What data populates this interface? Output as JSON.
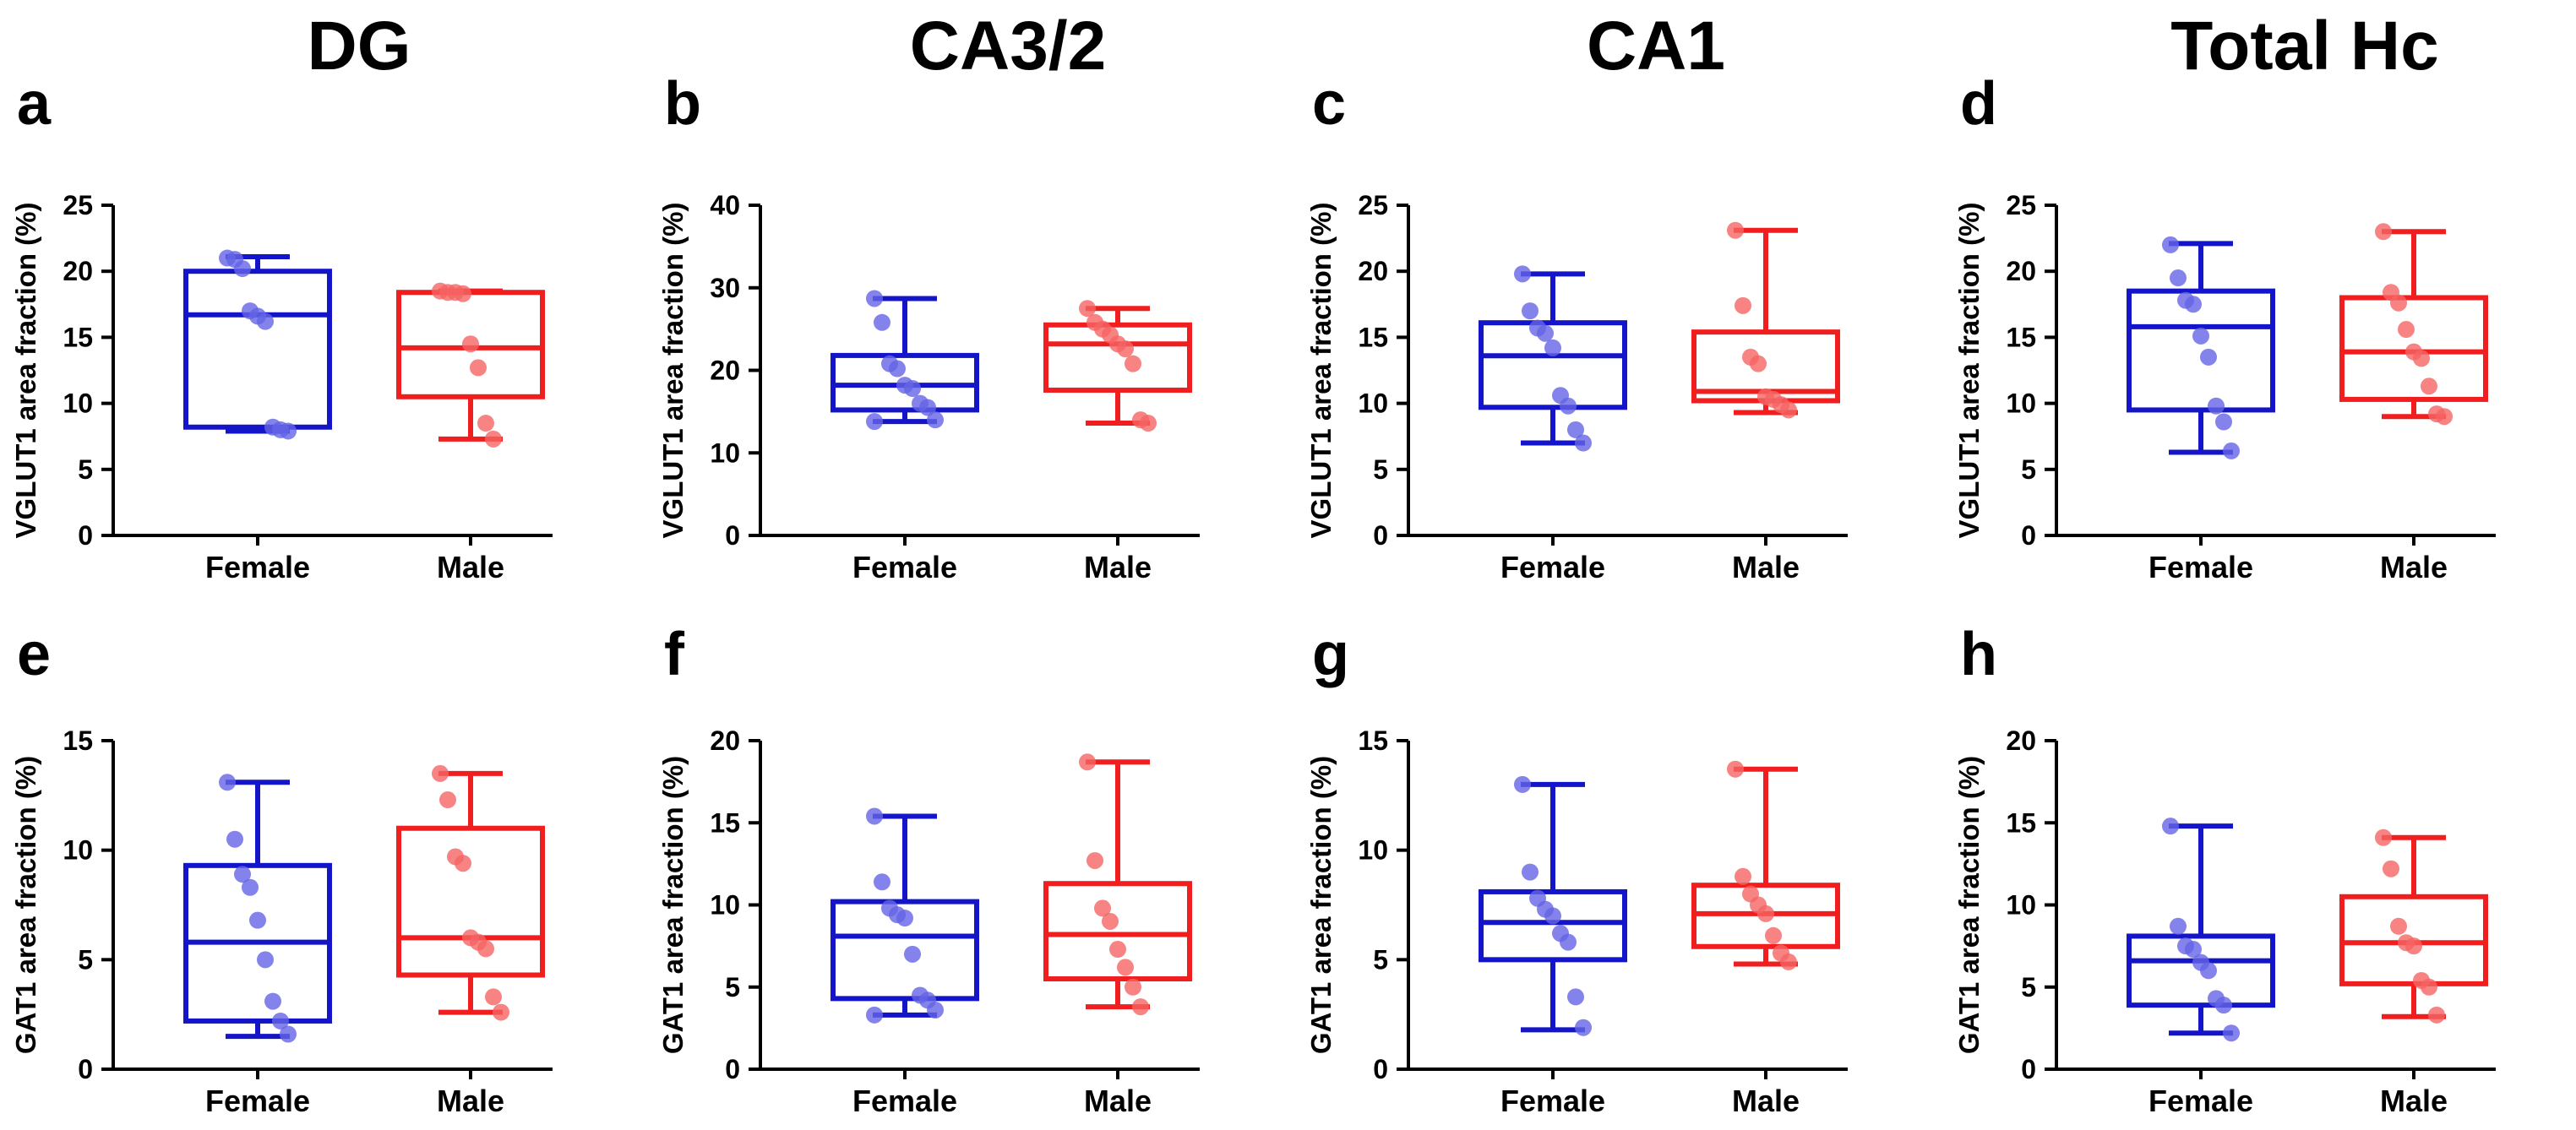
{
  "figure": {
    "column_titles": [
      "DG",
      "CA3/2",
      "CA1",
      "Total Hc"
    ],
    "colors": {
      "Female": "#1414c8",
      "Male": "#f01e1e",
      "Female_point": "#6464e6",
      "Male_point": "#f56464",
      "axis": "#000000"
    }
  },
  "chart_data": [
    {
      "panel": "a",
      "region": "DG",
      "type": "box",
      "ylabel": "VGLUT1 area fraction (%)",
      "ylim": [
        0,
        25
      ],
      "yticks": [
        0,
        5,
        10,
        15,
        20,
        25
      ],
      "categories": [
        "Female",
        "Male"
      ],
      "series": [
        {
          "name": "Female",
          "min": 7.9,
          "q1": 8.2,
          "median": 16.7,
          "q3": 20.0,
          "max": 21.1,
          "points": [
            21.0,
            20.9,
            20.2,
            17.0,
            16.6,
            16.2,
            8.2,
            8.0,
            7.9
          ]
        },
        {
          "name": "Male",
          "min": 7.3,
          "q1": 10.5,
          "median": 14.2,
          "q3": 18.4,
          "max": 18.5,
          "points": [
            18.5,
            18.4,
            18.4,
            18.3,
            14.5,
            12.7,
            8.5,
            7.3
          ]
        }
      ]
    },
    {
      "panel": "b",
      "region": "CA3/2",
      "type": "box",
      "ylabel": "VGLUT1 area fraction (%)",
      "ylim": [
        0,
        40
      ],
      "yticks": [
        0,
        10,
        20,
        30,
        40
      ],
      "categories": [
        "Female",
        "Male"
      ],
      "series": [
        {
          "name": "Female",
          "min": 13.8,
          "q1": 15.2,
          "median": 18.2,
          "q3": 21.8,
          "max": 28.7,
          "points": [
            28.7,
            25.8,
            20.8,
            20.2,
            18.2,
            17.8,
            16.0,
            15.5,
            14.0,
            13.8
          ]
        },
        {
          "name": "Male",
          "min": 13.6,
          "q1": 17.6,
          "median": 23.2,
          "q3": 25.5,
          "max": 27.5,
          "points": [
            27.5,
            25.8,
            25.0,
            24.3,
            23.2,
            22.6,
            20.8,
            14.0,
            13.6
          ]
        }
      ]
    },
    {
      "panel": "c",
      "region": "CA1",
      "type": "box",
      "ylabel": "VGLUT1 area fraction (%)",
      "ylim": [
        0,
        25
      ],
      "yticks": [
        0,
        5,
        10,
        15,
        20,
        25
      ],
      "categories": [
        "Female",
        "Male"
      ],
      "series": [
        {
          "name": "Female",
          "min": 7.0,
          "q1": 9.7,
          "median": 13.6,
          "q3": 16.1,
          "max": 19.8,
          "points": [
            19.8,
            17.0,
            15.7,
            15.3,
            14.2,
            10.6,
            9.8,
            8.0,
            7.0
          ]
        },
        {
          "name": "Male",
          "min": 9.3,
          "q1": 10.2,
          "median": 10.9,
          "q3": 15.4,
          "max": 23.1,
          "points": [
            23.1,
            17.4,
            13.5,
            13.0,
            10.5,
            10.3,
            9.9,
            9.5
          ]
        }
      ]
    },
    {
      "panel": "d",
      "region": "Total Hc",
      "type": "box",
      "ylabel": "VGLUT1 area fraction (%)",
      "ylim": [
        0,
        25
      ],
      "yticks": [
        0,
        5,
        10,
        15,
        20,
        25
      ],
      "categories": [
        "Female",
        "Male"
      ],
      "series": [
        {
          "name": "Female",
          "min": 6.3,
          "q1": 9.5,
          "median": 15.8,
          "q3": 18.5,
          "max": 22.1,
          "points": [
            22.0,
            19.5,
            17.8,
            17.5,
            15.1,
            13.5,
            9.8,
            8.6,
            6.4
          ]
        },
        {
          "name": "Male",
          "min": 9.0,
          "q1": 10.3,
          "median": 13.9,
          "q3": 18.0,
          "max": 23.0,
          "points": [
            23.0,
            18.4,
            17.6,
            15.6,
            13.9,
            13.4,
            11.3,
            9.2,
            9.0
          ]
        }
      ]
    },
    {
      "panel": "e",
      "region": "DG",
      "type": "box",
      "ylabel": "GAT1 area fraction (%)",
      "ylim": [
        0,
        15
      ],
      "yticks": [
        0,
        5,
        10,
        15
      ],
      "categories": [
        "Female",
        "Male"
      ],
      "series": [
        {
          "name": "Female",
          "min": 1.5,
          "q1": 2.2,
          "median": 5.8,
          "q3": 9.3,
          "max": 13.1,
          "points": [
            13.1,
            10.5,
            8.9,
            8.3,
            6.8,
            5.0,
            3.1,
            2.2,
            1.6
          ]
        },
        {
          "name": "Male",
          "min": 2.6,
          "q1": 4.3,
          "median": 6.0,
          "q3": 11.0,
          "max": 13.5,
          "points": [
            13.5,
            12.3,
            9.7,
            9.4,
            6.0,
            5.8,
            5.5,
            3.3,
            2.6
          ]
        }
      ]
    },
    {
      "panel": "f",
      "region": "CA3/2",
      "type": "box",
      "ylabel": "GAT1 area fraction (%)",
      "ylim": [
        0,
        20
      ],
      "yticks": [
        0,
        5,
        10,
        15,
        20
      ],
      "categories": [
        "Female",
        "Male"
      ],
      "series": [
        {
          "name": "Female",
          "min": 3.3,
          "q1": 4.3,
          "median": 8.1,
          "q3": 10.2,
          "max": 15.4,
          "points": [
            15.4,
            11.4,
            9.8,
            9.4,
            9.2,
            7.0,
            4.5,
            4.2,
            3.6,
            3.3
          ]
        },
        {
          "name": "Male",
          "min": 3.8,
          "q1": 5.5,
          "median": 8.2,
          "q3": 11.3,
          "max": 18.7,
          "points": [
            18.7,
            12.7,
            9.8,
            9.0,
            7.3,
            6.2,
            5.0,
            3.8
          ]
        }
      ]
    },
    {
      "panel": "g",
      "region": "CA1",
      "type": "box",
      "ylabel": "GAT1 area fraction (%)",
      "ylim": [
        0,
        15
      ],
      "yticks": [
        0,
        5,
        10,
        15
      ],
      "categories": [
        "Female",
        "Male"
      ],
      "series": [
        {
          "name": "Female",
          "min": 1.8,
          "q1": 5.0,
          "median": 6.7,
          "q3": 8.1,
          "max": 13.0,
          "points": [
            13.0,
            9.0,
            7.8,
            7.3,
            7.0,
            6.2,
            5.8,
            3.3,
            1.9
          ]
        },
        {
          "name": "Male",
          "min": 4.8,
          "q1": 5.6,
          "median": 7.1,
          "q3": 8.4,
          "max": 13.7,
          "points": [
            13.7,
            8.8,
            8.0,
            7.5,
            7.1,
            6.1,
            5.3,
            4.9
          ]
        }
      ]
    },
    {
      "panel": "h",
      "region": "Total Hc",
      "type": "box",
      "ylabel": "GAT1 area fraction (%)",
      "ylim": [
        0,
        20
      ],
      "yticks": [
        0,
        5,
        10,
        15,
        20
      ],
      "categories": [
        "Female",
        "Male"
      ],
      "series": [
        {
          "name": "Female",
          "min": 2.2,
          "q1": 3.9,
          "median": 6.6,
          "q3": 8.1,
          "max": 14.8,
          "points": [
            14.8,
            8.7,
            7.5,
            7.3,
            6.5,
            6.0,
            4.3,
            3.9,
            2.2
          ]
        },
        {
          "name": "Male",
          "min": 3.2,
          "q1": 5.2,
          "median": 7.7,
          "q3": 10.5,
          "max": 14.1,
          "points": [
            14.1,
            12.2,
            8.7,
            7.7,
            7.5,
            5.4,
            5.0,
            3.3
          ]
        }
      ]
    }
  ]
}
